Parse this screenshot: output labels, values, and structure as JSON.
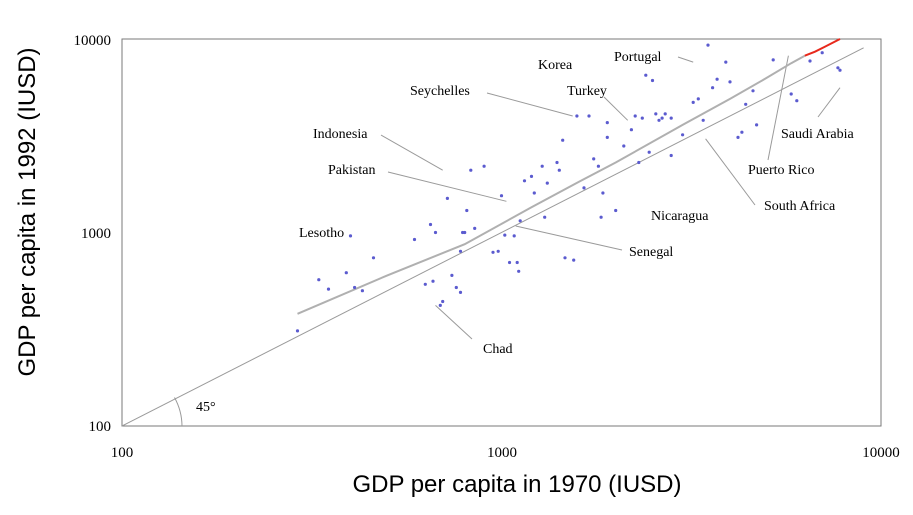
{
  "chart_data": {
    "type": "scatter",
    "x_scale": "log",
    "y_scale": "log",
    "xlim": [
      100,
      10000
    ],
    "ylim": [
      100,
      10000
    ],
    "xlabel": "GDP per capita in 1970 (IUSD)",
    "ylabel": "GDP per capita in 1992 (IUSD)",
    "x_ticks": [
      "100",
      "1000",
      "10000"
    ],
    "y_ticks": [
      "100",
      "1000",
      "10000"
    ],
    "grid": false,
    "angle_label": "45°",
    "reference_line": {
      "from": [
        100,
        100
      ],
      "to": [
        9000,
        9000
      ]
    },
    "fit_line": {
      "x": [
        290,
        500,
        800,
        1200,
        1600,
        2000,
        3000,
        4000,
        5000,
        5800,
        6300
      ],
      "y": [
        380,
        600,
        870,
        1350,
        1830,
        2300,
        3600,
        4900,
        6300,
        7500,
        8200
      ],
      "color": "#b0b0b0"
    },
    "fit_line_extension": {
      "x": [
        6300,
        6700,
        7100,
        7800
      ],
      "y": [
        8200,
        8600,
        9100,
        10000
      ],
      "color": "#e8291c"
    },
    "points": {
      "color": "#5b5bcf",
      "x": [
        290,
        330,
        350,
        390,
        400,
        410,
        430,
        460,
        590,
        630,
        650,
        660,
        670,
        690,
        700,
        720,
        740,
        760,
        780,
        780,
        790,
        800,
        810,
        830,
        850,
        900,
        950,
        980,
        1000,
        1020,
        1050,
        1080,
        1100,
        1110,
        1120,
        1150,
        1200,
        1220,
        1280,
        1300,
        1320,
        1400,
        1420,
        1450,
        1470,
        1550,
        1580,
        1650,
        1700,
        1750,
        1800,
        1830,
        1850,
        1900,
        1900,
        2000,
        2100,
        2200,
        2250,
        2300,
        2350,
        2400,
        2450,
        2500,
        2550,
        2600,
        2650,
        2700,
        2800,
        2800,
        3000,
        3200,
        3300,
        3400,
        3500,
        3600,
        3700,
        3900,
        4000,
        4200,
        4300,
        4400,
        4600,
        4700,
        5200,
        5800,
        6000,
        6500,
        7000,
        7700,
        7800
      ],
      "y": [
        310,
        570,
        510,
        620,
        960,
        520,
        500,
        740,
        920,
        540,
        1100,
        560,
        1000,
        420,
        440,
        1500,
        600,
        520,
        800,
        490,
        1000,
        1000,
        1300,
        2100,
        1050,
        2200,
        790,
        800,
        1550,
        970,
        700,
        960,
        700,
        630,
        1150,
        1850,
        1950,
        1600,
        2200,
        1200,
        1800,
        2300,
        2100,
        3000,
        740,
        720,
        4000,
        1700,
        4000,
        2400,
        2200,
        1200,
        1600,
        3100,
        3700,
        1300,
        2800,
        3400,
        4000,
        2300,
        3900,
        6500,
        2600,
        6100,
        4100,
        3800,
        3900,
        4100,
        2500,
        3900,
        3200,
        4700,
        4900,
        3800,
        9300,
        5600,
        6200,
        7600,
        6000,
        3100,
        3300,
        4600,
        5400,
        3600,
        7800,
        5200,
        4800,
        7700,
        8500,
        7100,
        6900
      ]
    },
    "annotations": [
      {
        "label": "Korea",
        "x": 1600,
        "y": 7300
      },
      {
        "label": "Portugal",
        "x": 3200,
        "y": 7600
      },
      {
        "label": "Seychelles",
        "x": 1540,
        "y": 4000
      },
      {
        "label": "Turkey",
        "x": 2150,
        "y": 3800
      },
      {
        "label": "Indonesia",
        "x": 700,
        "y": 2100
      },
      {
        "label": "Pakistan",
        "x": 1030,
        "y": 1450
      },
      {
        "label": "Lesotho",
        "x": 400,
        "y": 960
      },
      {
        "label": "Chad",
        "x": 670,
        "y": 420
      },
      {
        "label": "Senegal",
        "x": 1090,
        "y": 1080
      },
      {
        "label": "Nicaragua",
        "x": 2240,
        "y": 1300
      },
      {
        "label": "South Africa",
        "x": 3450,
        "y": 3050
      },
      {
        "label": "Puerto Rico",
        "x": 5700,
        "y": 8200
      },
      {
        "label": "Saudi Arabia",
        "x": 7800,
        "y": 5600
      }
    ]
  }
}
